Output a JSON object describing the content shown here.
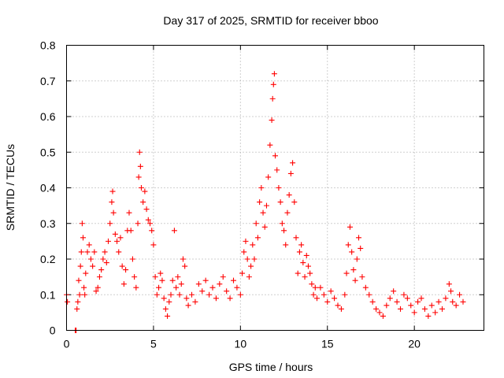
{
  "chart_data": {
    "type": "scatter",
    "title": "Day 317 of 2025, SRMTID for receiver bboo",
    "xlabel": "GPS time / hours",
    "ylabel": "SRMTID / TECUs",
    "xlim": [
      0,
      24
    ],
    "ylim": [
      0,
      0.8
    ],
    "xticks": [
      0,
      5,
      10,
      15,
      20
    ],
    "yticks": [
      0,
      0.1,
      0.2,
      0.3,
      0.4,
      0.5,
      0.6,
      0.7,
      0.8
    ],
    "xtick_labels": [
      "0",
      "5",
      "10",
      "15",
      "20"
    ],
    "ytick_labels": [
      "0",
      "0.1",
      "0.2",
      "0.3",
      "0.4",
      "0.5",
      "0.6",
      "0.7",
      "0.8"
    ],
    "grid": true,
    "marker": "+",
    "color": "#ff0000",
    "series": [
      {
        "name": "SRMTID",
        "points": [
          [
            0.0,
            0.1
          ],
          [
            0.05,
            0.08
          ],
          [
            0.5,
            0.0
          ],
          [
            0.55,
            0.0
          ],
          [
            0.6,
            0.06
          ],
          [
            0.65,
            0.08
          ],
          [
            0.7,
            0.14
          ],
          [
            0.75,
            0.1
          ],
          [
            0.8,
            0.18
          ],
          [
            0.85,
            0.22
          ],
          [
            0.9,
            0.3
          ],
          [
            0.95,
            0.26
          ],
          [
            1.0,
            0.12
          ],
          [
            1.05,
            0.1
          ],
          [
            1.1,
            0.16
          ],
          [
            1.2,
            0.22
          ],
          [
            1.3,
            0.24
          ],
          [
            1.4,
            0.2
          ],
          [
            1.5,
            0.18
          ],
          [
            1.6,
            0.22
          ],
          [
            1.7,
            0.11
          ],
          [
            1.8,
            0.12
          ],
          [
            1.9,
            0.15
          ],
          [
            2.0,
            0.17
          ],
          [
            2.1,
            0.2
          ],
          [
            2.2,
            0.22
          ],
          [
            2.3,
            0.19
          ],
          [
            2.4,
            0.25
          ],
          [
            2.5,
            0.3
          ],
          [
            2.6,
            0.36
          ],
          [
            2.65,
            0.39
          ],
          [
            2.7,
            0.33
          ],
          [
            2.8,
            0.27
          ],
          [
            2.9,
            0.25
          ],
          [
            3.0,
            0.22
          ],
          [
            3.1,
            0.26
          ],
          [
            3.2,
            0.18
          ],
          [
            3.3,
            0.13
          ],
          [
            3.4,
            0.17
          ],
          [
            3.5,
            0.28
          ],
          [
            3.6,
            0.33
          ],
          [
            3.7,
            0.28
          ],
          [
            3.8,
            0.2
          ],
          [
            3.9,
            0.15
          ],
          [
            4.0,
            0.12
          ],
          [
            4.1,
            0.3
          ],
          [
            4.15,
            0.43
          ],
          [
            4.2,
            0.5
          ],
          [
            4.25,
            0.46
          ],
          [
            4.3,
            0.4
          ],
          [
            4.4,
            0.36
          ],
          [
            4.5,
            0.39
          ],
          [
            4.6,
            0.34
          ],
          [
            4.7,
            0.31
          ],
          [
            4.8,
            0.3
          ],
          [
            4.9,
            0.28
          ],
          [
            5.0,
            0.24
          ],
          [
            5.1,
            0.15
          ],
          [
            5.2,
            0.1
          ],
          [
            5.3,
            0.12
          ],
          [
            5.4,
            0.16
          ],
          [
            5.5,
            0.14
          ],
          [
            5.6,
            0.09
          ],
          [
            5.7,
            0.06
          ],
          [
            5.8,
            0.04
          ],
          [
            5.9,
            0.08
          ],
          [
            6.0,
            0.1
          ],
          [
            6.1,
            0.14
          ],
          [
            6.2,
            0.28
          ],
          [
            6.3,
            0.12
          ],
          [
            6.4,
            0.15
          ],
          [
            6.5,
            0.1
          ],
          [
            6.6,
            0.13
          ],
          [
            6.7,
            0.2
          ],
          [
            6.8,
            0.18
          ],
          [
            6.9,
            0.09
          ],
          [
            7.0,
            0.07
          ],
          [
            7.2,
            0.1
          ],
          [
            7.4,
            0.08
          ],
          [
            7.6,
            0.13
          ],
          [
            7.8,
            0.11
          ],
          [
            8.0,
            0.14
          ],
          [
            8.2,
            0.1
          ],
          [
            8.4,
            0.12
          ],
          [
            8.6,
            0.09
          ],
          [
            8.8,
            0.13
          ],
          [
            9.0,
            0.15
          ],
          [
            9.2,
            0.11
          ],
          [
            9.4,
            0.09
          ],
          [
            9.6,
            0.14
          ],
          [
            9.8,
            0.12
          ],
          [
            10.0,
            0.1
          ],
          [
            10.1,
            0.16
          ],
          [
            10.2,
            0.22
          ],
          [
            10.3,
            0.25
          ],
          [
            10.4,
            0.2
          ],
          [
            10.5,
            0.15
          ],
          [
            10.6,
            0.18
          ],
          [
            10.7,
            0.24
          ],
          [
            10.8,
            0.2
          ],
          [
            10.9,
            0.3
          ],
          [
            11.0,
            0.26
          ],
          [
            11.1,
            0.36
          ],
          [
            11.2,
            0.4
          ],
          [
            11.3,
            0.33
          ],
          [
            11.4,
            0.29
          ],
          [
            11.5,
            0.35
          ],
          [
            11.6,
            0.43
          ],
          [
            11.7,
            0.52
          ],
          [
            11.8,
            0.59
          ],
          [
            11.85,
            0.65
          ],
          [
            11.9,
            0.69
          ],
          [
            11.95,
            0.72
          ],
          [
            12.0,
            0.49
          ],
          [
            12.1,
            0.45
          ],
          [
            12.2,
            0.4
          ],
          [
            12.3,
            0.36
          ],
          [
            12.4,
            0.3
          ],
          [
            12.5,
            0.28
          ],
          [
            12.6,
            0.24
          ],
          [
            12.7,
            0.33
          ],
          [
            12.8,
            0.38
          ],
          [
            12.9,
            0.44
          ],
          [
            13.0,
            0.47
          ],
          [
            13.1,
            0.36
          ],
          [
            13.2,
            0.26
          ],
          [
            13.3,
            0.16
          ],
          [
            13.4,
            0.22
          ],
          [
            13.5,
            0.24
          ],
          [
            13.6,
            0.19
          ],
          [
            13.7,
            0.15
          ],
          [
            13.8,
            0.21
          ],
          [
            13.9,
            0.18
          ],
          [
            14.0,
            0.16
          ],
          [
            14.1,
            0.13
          ],
          [
            14.2,
            0.1
          ],
          [
            14.3,
            0.12
          ],
          [
            14.4,
            0.09
          ],
          [
            14.6,
            0.12
          ],
          [
            14.8,
            0.1
          ],
          [
            15.0,
            0.08
          ],
          [
            15.2,
            0.11
          ],
          [
            15.4,
            0.09
          ],
          [
            15.6,
            0.07
          ],
          [
            15.8,
            0.06
          ],
          [
            16.0,
            0.1
          ],
          [
            16.1,
            0.16
          ],
          [
            16.2,
            0.24
          ],
          [
            16.3,
            0.29
          ],
          [
            16.4,
            0.22
          ],
          [
            16.5,
            0.17
          ],
          [
            16.6,
            0.14
          ],
          [
            16.7,
            0.2
          ],
          [
            16.8,
            0.26
          ],
          [
            16.9,
            0.23
          ],
          [
            17.0,
            0.15
          ],
          [
            17.2,
            0.12
          ],
          [
            17.4,
            0.1
          ],
          [
            17.6,
            0.08
          ],
          [
            17.8,
            0.06
          ],
          [
            18.0,
            0.05
          ],
          [
            18.2,
            0.04
          ],
          [
            18.4,
            0.07
          ],
          [
            18.6,
            0.09
          ],
          [
            18.8,
            0.11
          ],
          [
            19.0,
            0.08
          ],
          [
            19.2,
            0.06
          ],
          [
            19.4,
            0.1
          ],
          [
            19.6,
            0.09
          ],
          [
            19.8,
            0.07
          ],
          [
            20.0,
            0.05
          ],
          [
            20.2,
            0.08
          ],
          [
            20.4,
            0.09
          ],
          [
            20.6,
            0.06
          ],
          [
            20.8,
            0.04
          ],
          [
            21.0,
            0.07
          ],
          [
            21.2,
            0.05
          ],
          [
            21.4,
            0.08
          ],
          [
            21.6,
            0.06
          ],
          [
            21.8,
            0.09
          ],
          [
            22.0,
            0.13
          ],
          [
            22.1,
            0.11
          ],
          [
            22.2,
            0.08
          ],
          [
            22.4,
            0.07
          ],
          [
            22.6,
            0.1
          ],
          [
            22.8,
            0.08
          ]
        ]
      }
    ]
  }
}
